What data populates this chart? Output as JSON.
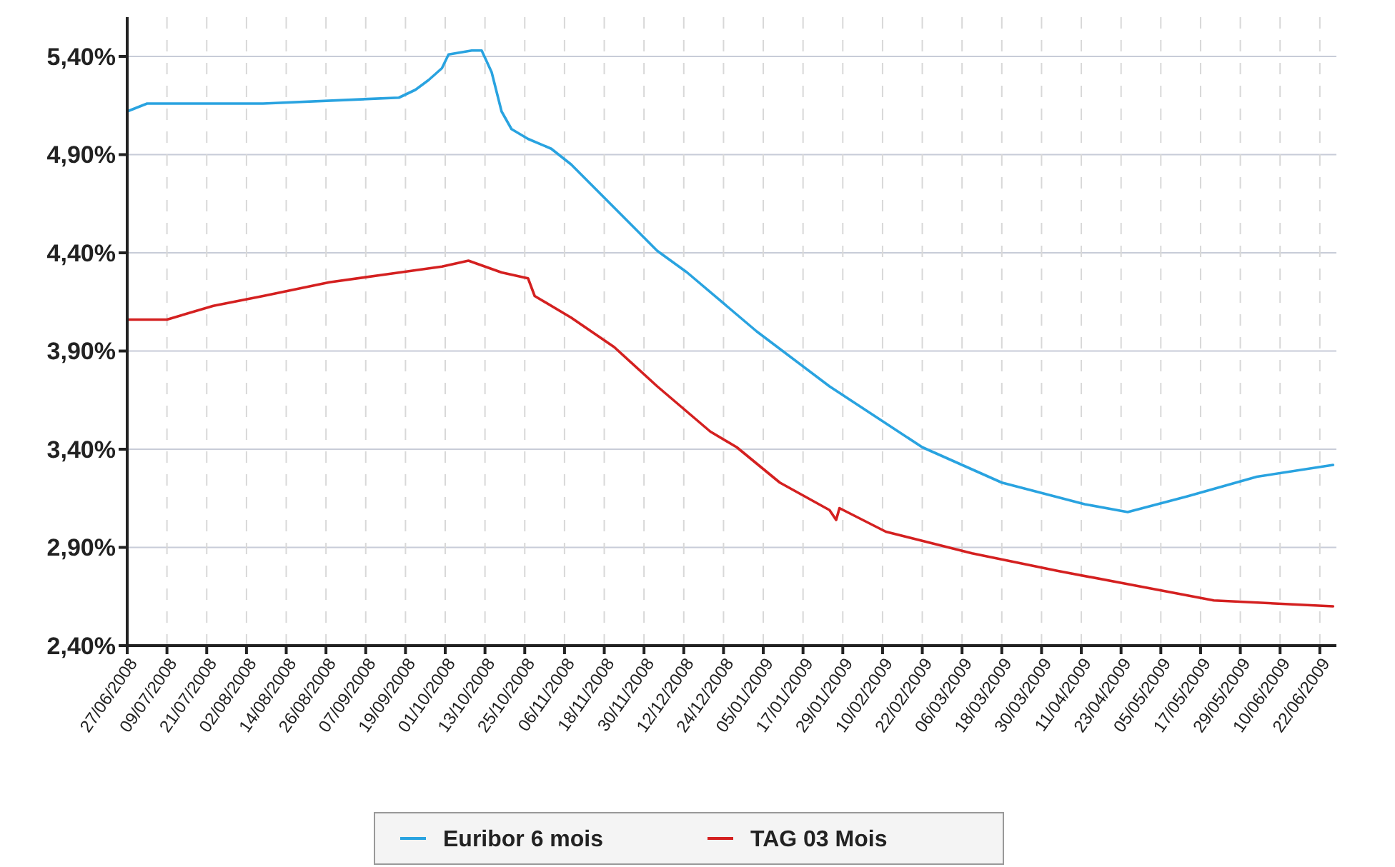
{
  "chart_data": {
    "type": "line",
    "xlim": [
      "2008-06-27",
      "2009-06-27"
    ],
    "xticks": [
      {
        "value": "2008-06-27",
        "label": "27/06/2008"
      },
      {
        "value": "2008-07-09",
        "label": "09/07/2008"
      },
      {
        "value": "2008-07-21",
        "label": "21/07/2008"
      },
      {
        "value": "2008-08-02",
        "label": "02/08/2008"
      },
      {
        "value": "2008-08-14",
        "label": "14/08/2008"
      },
      {
        "value": "2008-08-26",
        "label": "26/08/2008"
      },
      {
        "value": "2008-09-07",
        "label": "07/09/2008"
      },
      {
        "value": "2008-09-19",
        "label": "19/09/2008"
      },
      {
        "value": "2008-10-01",
        "label": "01/10/2008"
      },
      {
        "value": "2008-10-13",
        "label": "13/10/2008"
      },
      {
        "value": "2008-10-25",
        "label": "25/10/2008"
      },
      {
        "value": "2008-11-06",
        "label": "06/11/2008"
      },
      {
        "value": "2008-11-18",
        "label": "18/11/2008"
      },
      {
        "value": "2008-11-30",
        "label": "30/11/2008"
      },
      {
        "value": "2008-12-12",
        "label": "12/12/2008"
      },
      {
        "value": "2008-12-24",
        "label": "24/12/2008"
      },
      {
        "value": "2009-01-05",
        "label": "05/01/2009"
      },
      {
        "value": "2009-01-17",
        "label": "17/01/2009"
      },
      {
        "value": "2009-01-29",
        "label": "29/01/2009"
      },
      {
        "value": "2009-02-10",
        "label": "10/02/2009"
      },
      {
        "value": "2009-02-22",
        "label": "22/02/2009"
      },
      {
        "value": "2009-03-06",
        "label": "06/03/2009"
      },
      {
        "value": "2009-03-18",
        "label": "18/03/2009"
      },
      {
        "value": "2009-03-30",
        "label": "30/03/2009"
      },
      {
        "value": "2009-04-11",
        "label": "11/04/2009"
      },
      {
        "value": "2009-04-23",
        "label": "23/04/2009"
      },
      {
        "value": "2009-05-05",
        "label": "05/05/2009"
      },
      {
        "value": "2009-05-17",
        "label": "17/05/2009"
      },
      {
        "value": "2009-05-29",
        "label": "29/05/2009"
      },
      {
        "value": "2009-06-10",
        "label": "10/06/2009"
      },
      {
        "value": "2009-06-22",
        "label": "22/06/2009"
      }
    ],
    "ylim": [
      2.4,
      5.6
    ],
    "yticks": [
      {
        "value": 2.4,
        "label": "2,40%"
      },
      {
        "value": 2.9,
        "label": "2,90%"
      },
      {
        "value": 3.4,
        "label": "3,40%"
      },
      {
        "value": 3.9,
        "label": "3,90%"
      },
      {
        "value": 4.4,
        "label": "4,40%"
      },
      {
        "value": 4.9,
        "label": "4,90%"
      },
      {
        "value": 5.4,
        "label": "5,40%"
      }
    ],
    "grid": true,
    "legend": "bottom",
    "series": [
      {
        "name": "Euribor 6 mois",
        "color": "#29a3e0",
        "x": [
          "2008-06-27",
          "2008-07-03",
          "2008-08-07",
          "2008-09-17",
          "2008-09-22",
          "2008-09-26",
          "2008-09-30",
          "2008-10-02",
          "2008-10-09",
          "2008-10-12",
          "2008-10-15",
          "2008-10-18",
          "2008-10-21",
          "2008-10-26",
          "2008-11-02",
          "2008-11-08",
          "2008-12-04",
          "2008-12-13",
          "2009-01-03",
          "2009-01-25",
          "2009-02-22",
          "2009-03-18",
          "2009-04-12",
          "2009-04-25",
          "2009-05-13",
          "2009-06-03",
          "2009-06-26"
        ],
        "values": [
          5.12,
          5.16,
          5.16,
          5.19,
          5.23,
          5.28,
          5.34,
          5.41,
          5.43,
          5.43,
          5.32,
          5.12,
          5.03,
          4.98,
          4.93,
          4.85,
          4.41,
          4.3,
          4.0,
          3.72,
          3.41,
          3.23,
          3.12,
          3.08,
          3.16,
          3.26,
          3.32
        ]
      },
      {
        "name": "TAG 03 Mois",
        "color": "#d42020",
        "x": [
          "2008-06-27",
          "2008-07-09",
          "2008-07-23",
          "2008-08-07",
          "2008-08-27",
          "2008-09-13",
          "2008-09-30",
          "2008-10-08",
          "2008-10-18",
          "2008-10-26",
          "2008-10-28",
          "2008-11-08",
          "2008-11-21",
          "2008-12-04",
          "2008-12-20",
          "2008-12-28",
          "2009-01-10",
          "2009-01-25",
          "2009-01-27",
          "2009-01-28",
          "2009-02-11",
          "2009-03-09",
          "2009-04-04",
          "2009-04-26",
          "2009-05-21",
          "2009-06-26"
        ],
        "values": [
          4.06,
          4.06,
          4.13,
          4.18,
          4.25,
          4.29,
          4.33,
          4.36,
          4.3,
          4.27,
          4.18,
          4.07,
          3.92,
          3.72,
          3.49,
          3.41,
          3.23,
          3.09,
          3.04,
          3.1,
          2.98,
          2.87,
          2.78,
          2.71,
          2.63,
          2.6
        ]
      }
    ]
  }
}
